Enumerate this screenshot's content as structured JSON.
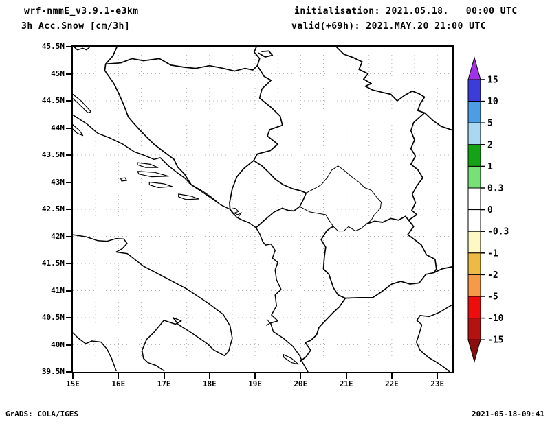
{
  "header": {
    "model_title": "wrf-nmmE_v3.9.1-e3km",
    "variable_title": "3h Acc.Snow [cm/3h]",
    "init_line": "initialisation: 2021.05.18.   00:00 UTC",
    "valid_line": "valid(+69h): 2021.MAY.20 21:00 UTC"
  },
  "footer": {
    "credit": "GrADS: COLA/IGES",
    "timestamp": "2021-05-18-09:41"
  },
  "chart_data": {
    "type": "heatmap",
    "title": "3h Acc.Snow [cm/3h]",
    "subtitle": "wrf-nmmE_v3.9.1-e3km, initialised 2021.05.18 00:00 UTC, valid(+69h) 2021.MAY.20 21:00 UTC",
    "projection": "lat-lon map of Adriatic / Balkan region, coastlines and country borders only",
    "x_axis": {
      "tick_labels": [
        "15E",
        "16E",
        "17E",
        "18E",
        "19E",
        "20E",
        "21E",
        "22E",
        "23E"
      ],
      "tick_values": [
        15,
        16,
        17,
        18,
        19,
        20,
        21,
        22,
        23
      ],
      "range": [
        15,
        23.33
      ],
      "units": "degrees east"
    },
    "y_axis": {
      "tick_labels": [
        "45.5N",
        "45N",
        "44.5N",
        "44N",
        "43.5N",
        "43N",
        "42.5N",
        "42N",
        "41.5N",
        "41N",
        "40.5N",
        "40N",
        "39.5N"
      ],
      "tick_values": [
        45.5,
        45,
        44.5,
        44,
        43.5,
        43,
        42.5,
        42,
        41.5,
        41,
        40.5,
        40,
        39.5
      ],
      "range": [
        39.5,
        45.5
      ],
      "units": "degrees north"
    },
    "grid": "dotted gray lines every 0.5 degree",
    "field_values_shown": "none (no shaded snow accumulation anywhere in domain)",
    "colorbar": {
      "units": "cm/3h",
      "boundary_labels": [
        "15",
        "10",
        "5",
        "2",
        "1",
        "0.3",
        "0",
        "-0.3",
        "-1",
        "-2",
        "-5",
        "-10",
        "-15"
      ],
      "segment_colors_top_to_bottom": [
        "#3c3cdc",
        "#4b9ee4",
        "#aad8f2",
        "#14a314",
        "#76e276",
        "#ffffff",
        "#ffffff",
        "#fdf8c4",
        "#edba45",
        "#f59a47",
        "#ee0d0d",
        "#b51111"
      ],
      "arrow_top_color": "#a033e8",
      "arrow_bottom_color": "#8b0e0e",
      "outline_color": "#000000"
    },
    "line_colors": {
      "coast_and_borders": "#000000",
      "grid": "#b4b4b4"
    }
  }
}
